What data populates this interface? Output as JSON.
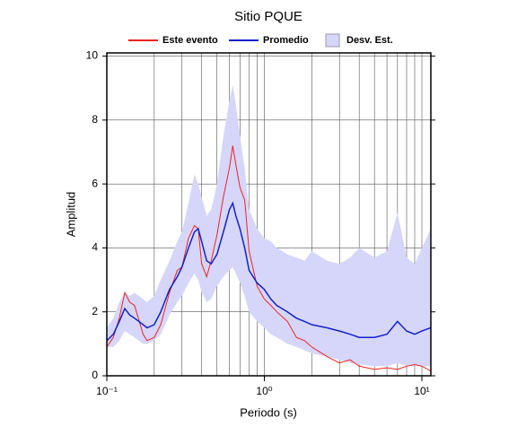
{
  "chart_data": {
    "type": "line",
    "title": "Sitio PQUE",
    "x_label": "Periodo (s)",
    "y_label": "Amplitud",
    "x_log": true,
    "grid": true,
    "xlim": [
      0.1,
      11.4
    ],
    "ylim": [
      0,
      10.1
    ],
    "xticks": [
      {
        "value": 0.1,
        "label": "10⁻¹"
      },
      {
        "value": 1,
        "label": "10⁰"
      },
      {
        "value": 10,
        "label": "10¹"
      }
    ],
    "xminor": [
      0.2,
      0.3,
      0.4,
      0.5,
      0.6,
      0.7,
      0.8,
      0.9,
      2,
      3,
      4,
      5,
      6,
      7,
      8,
      9
    ],
    "yticks": [
      0,
      2,
      4,
      6,
      8,
      10
    ],
    "x": [
      0.1,
      0.11,
      0.12,
      0.13,
      0.14,
      0.15,
      0.17,
      0.18,
      0.2,
      0.22,
      0.25,
      0.28,
      0.3,
      0.33,
      0.36,
      0.38,
      0.4,
      0.43,
      0.46,
      0.5,
      0.55,
      0.6,
      0.63,
      0.66,
      0.7,
      0.75,
      0.8,
      0.9,
      1.0,
      1.1,
      1.2,
      1.4,
      1.6,
      1.8,
      2.0,
      2.5,
      3,
      3.5,
      4,
      5,
      6,
      7,
      8,
      9,
      10,
      11.4
    ],
    "series": [
      {
        "name": "Este evento",
        "color": "#ee2222",
        "values": [
          0.9,
          1.2,
          1.8,
          2.6,
          2.3,
          2.2,
          1.3,
          1.1,
          1.2,
          1.6,
          2.6,
          3.3,
          3.4,
          4.3,
          4.7,
          4.6,
          3.5,
          3.1,
          3.6,
          4.4,
          5.6,
          6.5,
          7.2,
          6.6,
          5.9,
          5.5,
          3.9,
          2.8,
          2.4,
          2.2,
          2.0,
          1.7,
          1.2,
          1.1,
          0.9,
          0.6,
          0.4,
          0.5,
          0.3,
          0.2,
          0.25,
          0.2,
          0.3,
          0.35,
          0.3,
          0.15
        ]
      },
      {
        "name": "Promedio",
        "color": "#1122cc",
        "values": [
          1.1,
          1.3,
          1.7,
          2.1,
          1.9,
          1.8,
          1.6,
          1.5,
          1.6,
          2.0,
          2.7,
          3.1,
          3.4,
          4.0,
          4.5,
          4.6,
          4.2,
          3.6,
          3.5,
          3.8,
          4.5,
          5.2,
          5.4,
          5.0,
          4.6,
          4.0,
          3.3,
          2.9,
          2.7,
          2.4,
          2.2,
          2.0,
          1.8,
          1.7,
          1.6,
          1.5,
          1.4,
          1.3,
          1.2,
          1.2,
          1.3,
          1.7,
          1.4,
          1.3,
          1.4,
          1.5
        ]
      },
      {
        "name": "Desv. Est.",
        "color": "#d6d6fa",
        "upper": [
          1.5,
          1.8,
          2.3,
          2.6,
          2.5,
          2.6,
          2.4,
          2.3,
          2.5,
          3.0,
          3.6,
          4.2,
          4.5,
          5.4,
          6.3,
          6.0,
          5.6,
          5.0,
          5.2,
          6.0,
          7.5,
          8.6,
          9.1,
          8.5,
          7.5,
          6.5,
          5.2,
          4.6,
          4.3,
          4.2,
          4.0,
          3.8,
          3.7,
          3.6,
          3.9,
          3.6,
          3.5,
          3.7,
          4.0,
          3.7,
          3.9,
          5.1,
          3.7,
          3.5,
          4.0,
          4.6
        ],
        "lower": [
          0.9,
          0.9,
          1.1,
          1.4,
          1.3,
          1.2,
          1.0,
          1.0,
          1.1,
          1.3,
          1.9,
          2.3,
          2.5,
          2.9,
          3.2,
          3.0,
          2.6,
          2.3,
          2.4,
          2.8,
          3.1,
          3.3,
          3.4,
          3.2,
          2.9,
          2.5,
          2.0,
          1.7,
          1.5,
          1.3,
          1.2,
          1.0,
          0.9,
          0.8,
          0.7,
          0.6,
          0.5,
          0.4,
          0.35,
          0.3,
          0.3,
          0.4,
          0.3,
          0.3,
          0.3,
          0.3
        ]
      }
    ]
  }
}
